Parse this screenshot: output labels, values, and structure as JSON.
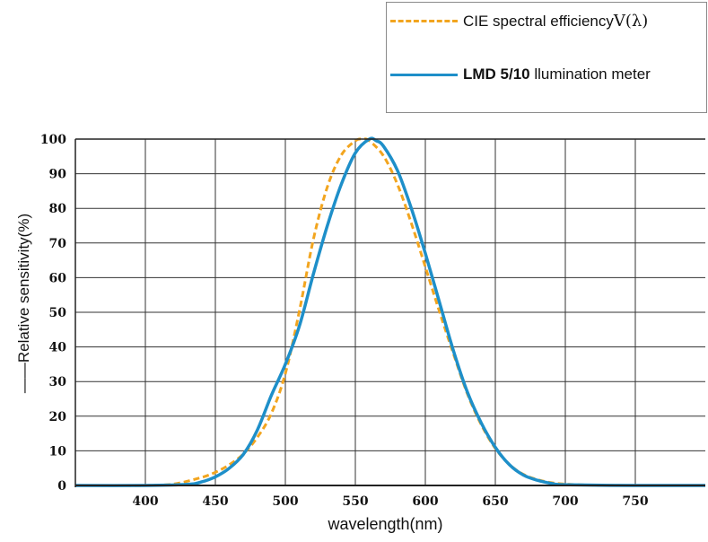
{
  "chart_data": {
    "type": "line",
    "xlabel": "wavelength(nm)",
    "ylabel": "——Relative sensitivity(%)",
    "xlim": [
      350,
      800
    ],
    "ylim": [
      0,
      100
    ],
    "x_ticks": [
      400,
      450,
      500,
      550,
      600,
      650,
      700,
      750
    ],
    "y_ticks": [
      0,
      10,
      20,
      30,
      40,
      50,
      60,
      70,
      80,
      90,
      100
    ],
    "grid": true,
    "legend_position": "top-right",
    "legend": {
      "cie_label": "CIE spectral efficiency",
      "cie_symbol": "V(λ)",
      "lmd_label_bold": "LMD 5/10",
      "lmd_label_rest": " llumination meter"
    },
    "series": [
      {
        "name": "CIE spectral efficiencyV(λ)",
        "style": "dashed",
        "color": "#f2a51f",
        "x": [
          350,
          380,
          400,
          420,
          440,
          450,
          460,
          470,
          480,
          490,
          500,
          510,
          520,
          530,
          540,
          550,
          555,
          560,
          570,
          580,
          590,
          600,
          610,
          620,
          630,
          640,
          650,
          660,
          670,
          680,
          690,
          700,
          720,
          750,
          800
        ],
        "y": [
          0,
          0,
          0,
          0.4,
          2.3,
          3.8,
          6.0,
          9.1,
          13.9,
          20.8,
          32.3,
          50.3,
          71.0,
          86.2,
          95.4,
          99.5,
          100,
          99.5,
          95.2,
          87.0,
          75.7,
          63.1,
          50.3,
          38.1,
          26.5,
          17.5,
          10.7,
          6.1,
          3.2,
          1.7,
          0.8,
          0.4,
          0.1,
          0,
          0
        ]
      },
      {
        "name": "LMD 5/10 llumination meter",
        "style": "solid",
        "color": "#1e8fc9",
        "x": [
          350,
          400,
          430,
          440,
          450,
          460,
          470,
          480,
          490,
          500,
          510,
          520,
          530,
          540,
          550,
          560,
          565,
          570,
          580,
          590,
          600,
          610,
          620,
          630,
          640,
          650,
          660,
          670,
          680,
          690,
          700,
          750,
          800
        ],
        "y": [
          0,
          0,
          0.3,
          1,
          2.5,
          5,
          9,
          16,
          26,
          35,
          46,
          61,
          75,
          87,
          96,
          100,
          99.5,
          98,
          91,
          80,
          67,
          53,
          39,
          27,
          18,
          11,
          6,
          3,
          1.5,
          0.6,
          0.2,
          0,
          0
        ]
      }
    ]
  }
}
